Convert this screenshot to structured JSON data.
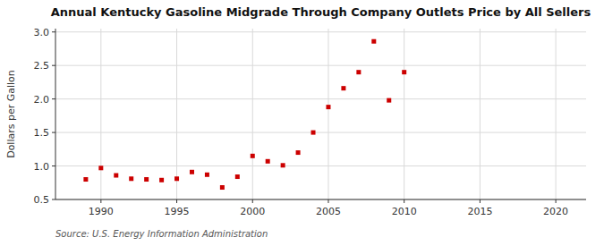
{
  "chart_data": {
    "type": "scatter",
    "title": "Annual Kentucky Gasoline Midgrade Through Company Outlets Price by All Sellers",
    "y_label": "Dollars per Gallon",
    "annotations": [
      "Source: U.S. Energy Information Administration"
    ],
    "x": [
      1989,
      1990,
      1991,
      1992,
      1993,
      1994,
      1995,
      1996,
      1997,
      1998,
      1999,
      2000,
      2001,
      2002,
      2003,
      2004,
      2005,
      2006,
      2007,
      2008,
      2009,
      2010
    ],
    "values": [
      0.8,
      0.97,
      0.86,
      0.81,
      0.8,
      0.79,
      0.81,
      0.91,
      0.87,
      0.68,
      0.84,
      1.15,
      1.07,
      1.01,
      1.2,
      1.5,
      1.88,
      2.16,
      2.4,
      2.86,
      1.98,
      2.4
    ],
    "color": "#cc0000",
    "marker": "square",
    "xlim": [
      1987,
      2022
    ],
    "ylim": [
      0.5,
      3.05
    ],
    "xticks": [
      1990,
      1995,
      2000,
      2005,
      2010,
      2015,
      2020
    ],
    "yticks": [
      0.5,
      {
        "value": 1.0,
        "label": "1.0"
      },
      1.5,
      {
        "value": 2.0,
        "label": "2.0"
      },
      2.5,
      {
        "value": 3.0,
        "label": "3.0"
      }
    ],
    "grid": true
  }
}
